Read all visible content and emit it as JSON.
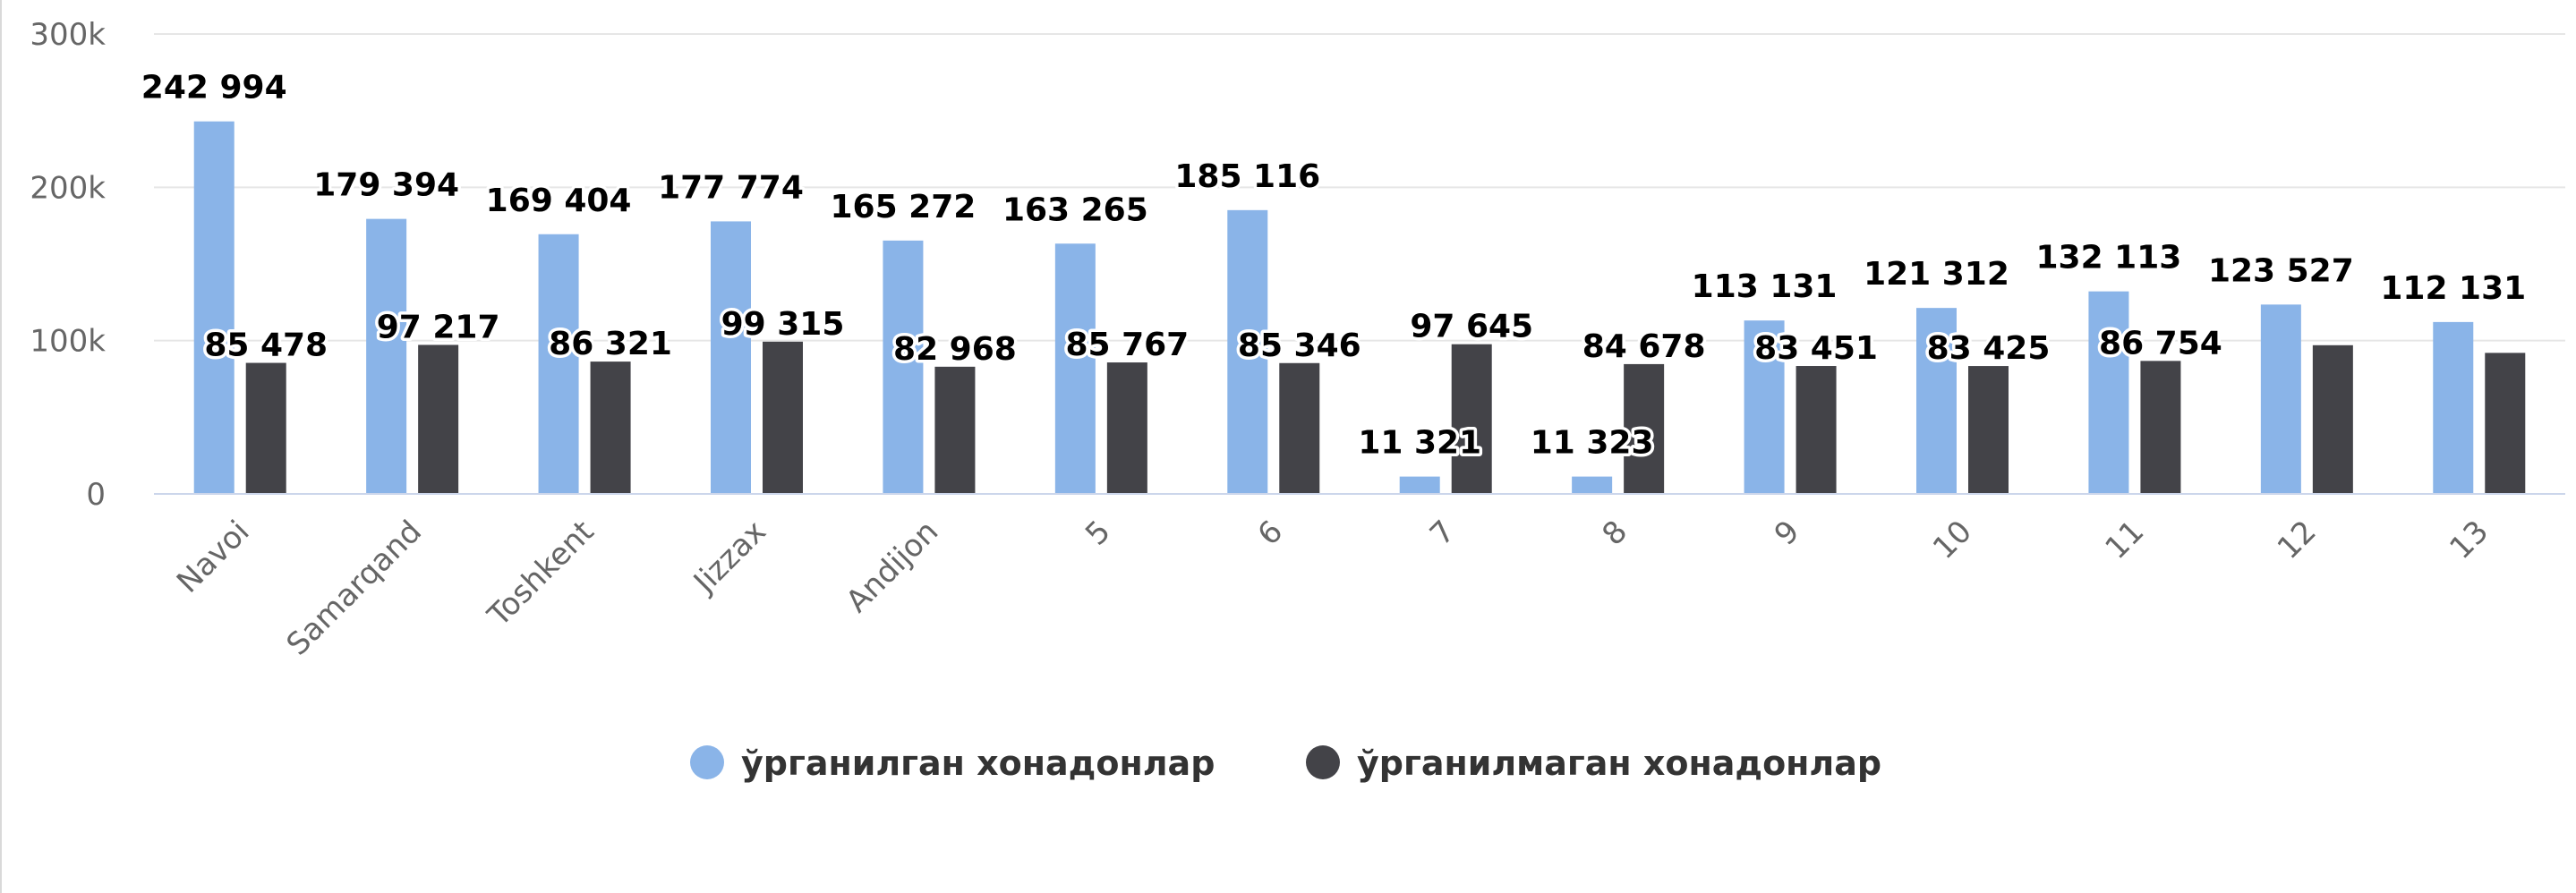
{
  "chart_data": {
    "type": "bar",
    "title": "",
    "xlabel": "",
    "ylabel": "",
    "ylim": [
      0,
      300000
    ],
    "yticks": [
      0,
      100000,
      200000,
      300000
    ],
    "ytick_labels": [
      "0",
      "100k",
      "200k",
      "300k"
    ],
    "grid": true,
    "legend_position": "bottom-center",
    "categories": [
      "Navoi",
      "Samarqand",
      "Toshkent",
      "Jizzax",
      "Andijon",
      "5",
      "6",
      "7",
      "8",
      "9",
      "10",
      "11",
      "12",
      "13"
    ],
    "series": [
      {
        "name": "ўрганилган хонадонлар",
        "color": "#8ab4e8",
        "values": [
          242994,
          179394,
          169404,
          177774,
          165272,
          163265,
          185116,
          11321,
          11323,
          113131,
          121312,
          132113,
          123527,
          112131
        ],
        "labels": [
          "242 994",
          "179 394",
          "169 404",
          "177 774",
          "165 272",
          "163 265",
          "185 116",
          "11 321",
          "11 323",
          "113 131",
          "121 312",
          "132 113",
          "123 527",
          "112 131"
        ]
      },
      {
        "name": "ўрганилмаган хонадонлар",
        "color": "#434348",
        "values": [
          85478,
          97217,
          86321,
          99315,
          82968,
          85767,
          85346,
          97645,
          84678,
          83451,
          83425,
          86754,
          97000,
          92000
        ],
        "labels": [
          "85 478",
          "97 217",
          "86 321",
          "99 315",
          "82 968",
          "85 767",
          "85 346",
          "97 645",
          "84 678",
          "83 451",
          "83 425",
          "86 754",
          null,
          null
        ]
      }
    ]
  }
}
